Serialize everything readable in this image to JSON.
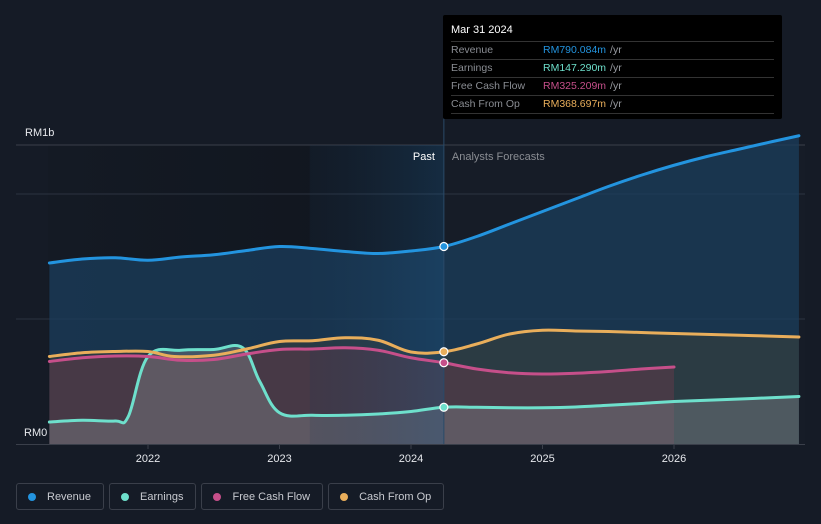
{
  "tooltip": {
    "date": "Mar 31 2024",
    "rows": [
      {
        "label": "Revenue",
        "value": "RM790.084m",
        "unit": "/yr",
        "color": "#2394df"
      },
      {
        "label": "Earnings",
        "value": "RM147.290m",
        "unit": "/yr",
        "color": "#6ee0cc"
      },
      {
        "label": "Free Cash Flow",
        "value": "RM325.209m",
        "unit": "/yr",
        "color": "#c64f8a"
      },
      {
        "label": "Cash From Op",
        "value": "RM368.697m",
        "unit": "/yr",
        "color": "#e9ae5b"
      }
    ]
  },
  "legend": [
    {
      "label": "Revenue",
      "color": "#2394df"
    },
    {
      "label": "Earnings",
      "color": "#6ee0cc"
    },
    {
      "label": "Free Cash Flow",
      "color": "#c64f8a"
    },
    {
      "label": "Cash From Op",
      "color": "#e9ae5b"
    }
  ],
  "chart_data": {
    "type": "area",
    "title": "",
    "xlabel": "",
    "ylabel": "",
    "units": "RM millions",
    "y_ticks": [
      {
        "value": 1000,
        "label": "RM1b"
      },
      {
        "value": 0,
        "label": "RM0"
      }
    ],
    "ylim": [
      0,
      1200
    ],
    "xlim": [
      2021.2,
      2026.95
    ],
    "x_ticks": [
      {
        "value": 2022,
        "label": "2022"
      },
      {
        "value": 2023,
        "label": "2023"
      },
      {
        "value": 2024,
        "label": "2024"
      },
      {
        "value": 2025,
        "label": "2025"
      },
      {
        "value": 2026,
        "label": "2026"
      }
    ],
    "divider": {
      "x": 2024.25,
      "past_label": "Past",
      "forecast_label": "Analysts Forecasts"
    },
    "highlight_start": 2023.23,
    "marker_x": 2024.25,
    "grid": true,
    "legend_position": "bottom-left",
    "series": [
      {
        "name": "Revenue",
        "color": "#2394df",
        "points": [
          [
            2021.25,
            724
          ],
          [
            2021.5,
            740
          ],
          [
            2021.75,
            745
          ],
          [
            2022.0,
            735
          ],
          [
            2022.25,
            748
          ],
          [
            2022.5,
            757
          ],
          [
            2022.75,
            774
          ],
          [
            2023.0,
            790
          ],
          [
            2023.25,
            782
          ],
          [
            2023.5,
            770
          ],
          [
            2023.75,
            762
          ],
          [
            2024.0,
            772
          ],
          [
            2024.25,
            790
          ],
          [
            2024.5,
            830
          ],
          [
            2024.75,
            880
          ],
          [
            2025.0,
            930
          ],
          [
            2025.25,
            980
          ],
          [
            2025.5,
            1030
          ],
          [
            2025.75,
            1075
          ],
          [
            2026.0,
            1115
          ],
          [
            2026.25,
            1150
          ],
          [
            2026.5,
            1180
          ],
          [
            2026.75,
            1210
          ],
          [
            2026.95,
            1233
          ]
        ]
      },
      {
        "name": "Earnings",
        "color": "#6ee0cc",
        "points": [
          [
            2021.25,
            88
          ],
          [
            2021.5,
            95
          ],
          [
            2021.75,
            92
          ],
          [
            2021.85,
            110
          ],
          [
            2022.0,
            350
          ],
          [
            2022.25,
            375
          ],
          [
            2022.5,
            378
          ],
          [
            2022.72,
            385
          ],
          [
            2022.85,
            250
          ],
          [
            2023.0,
            125
          ],
          [
            2023.25,
            115
          ],
          [
            2023.5,
            115
          ],
          [
            2023.75,
            120
          ],
          [
            2024.0,
            130
          ],
          [
            2024.25,
            147
          ],
          [
            2024.5,
            147
          ],
          [
            2024.75,
            145
          ],
          [
            2025.0,
            145
          ],
          [
            2025.25,
            148
          ],
          [
            2025.5,
            155
          ],
          [
            2025.75,
            162
          ],
          [
            2026.0,
            170
          ],
          [
            2026.5,
            180
          ],
          [
            2026.95,
            190
          ]
        ]
      },
      {
        "name": "Free Cash Flow",
        "color": "#c64f8a",
        "points": [
          [
            2021.25,
            330
          ],
          [
            2021.5,
            345
          ],
          [
            2021.75,
            352
          ],
          [
            2022.0,
            350
          ],
          [
            2022.25,
            335
          ],
          [
            2022.5,
            338
          ],
          [
            2022.75,
            360
          ],
          [
            2023.0,
            378
          ],
          [
            2023.25,
            380
          ],
          [
            2023.5,
            385
          ],
          [
            2023.75,
            375
          ],
          [
            2024.0,
            345
          ],
          [
            2024.25,
            325
          ],
          [
            2024.5,
            300
          ],
          [
            2024.75,
            285
          ],
          [
            2025.0,
            280
          ],
          [
            2025.25,
            283
          ],
          [
            2025.5,
            290
          ],
          [
            2025.75,
            300
          ],
          [
            2026.0,
            308
          ]
        ]
      },
      {
        "name": "Cash From Op",
        "color": "#e9ae5b",
        "points": [
          [
            2021.25,
            350
          ],
          [
            2021.5,
            365
          ],
          [
            2021.75,
            370
          ],
          [
            2022.0,
            370
          ],
          [
            2022.2,
            350
          ],
          [
            2022.5,
            355
          ],
          [
            2022.75,
            380
          ],
          [
            2023.0,
            410
          ],
          [
            2023.25,
            413
          ],
          [
            2023.5,
            425
          ],
          [
            2023.75,
            415
          ],
          [
            2024.0,
            368
          ],
          [
            2024.25,
            369
          ],
          [
            2024.5,
            400
          ],
          [
            2024.75,
            440
          ],
          [
            2025.0,
            455
          ],
          [
            2025.25,
            452
          ],
          [
            2025.5,
            450
          ],
          [
            2025.75,
            446
          ],
          [
            2026.0,
            442
          ],
          [
            2026.5,
            435
          ],
          [
            2026.95,
            428
          ]
        ]
      }
    ]
  }
}
